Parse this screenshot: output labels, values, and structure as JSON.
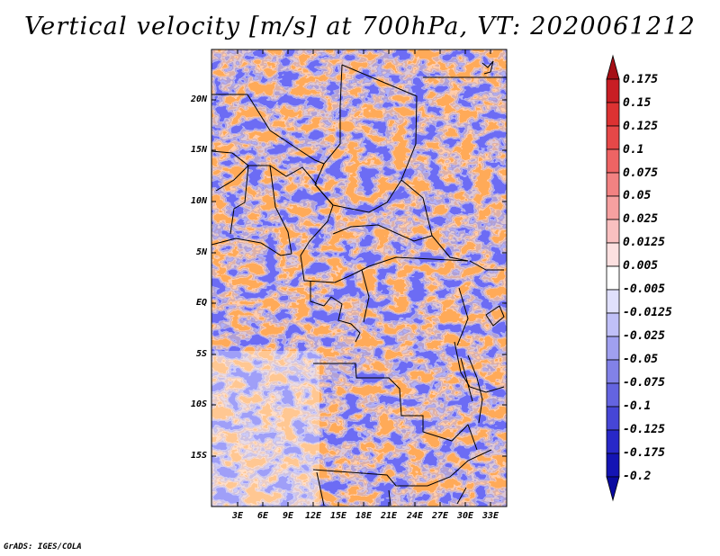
{
  "title": "Vertical velocity [m/s] at 700hPa, VT: 2020061212",
  "footer": "GrADS: IGES/COLA",
  "map": {
    "type": "filled-contour",
    "projection": "latlon",
    "lat_ticks": [
      "20N",
      "15N",
      "10N",
      "5N",
      "EQ",
      "5S",
      "10S",
      "15S"
    ],
    "lon_ticks": [
      "3E",
      "6E",
      "9E",
      "12E",
      "15E",
      "18E",
      "21E",
      "24E",
      "27E",
      "30E",
      "33E"
    ]
  },
  "colorbar": {
    "labels": [
      "0.175",
      "0.15",
      "0.125",
      "0.1",
      "0.075",
      "0.05",
      "0.025",
      "0.0125",
      "0.005",
      "-0.005",
      "-0.0125",
      "-0.025",
      "-0.05",
      "-0.075",
      "-0.1",
      "-0.125",
      "-0.175",
      "-0.2"
    ],
    "colors": [
      "#a50f15",
      "#c81e24",
      "#dc3232",
      "#e64848",
      "#ee6464",
      "#f28282",
      "#f6a0a0",
      "#f9c0c0",
      "#fce0e0",
      "#ffffff",
      "#e0e0fc",
      "#c0c0f8",
      "#a0a0f0",
      "#8282e8",
      "#6464e0",
      "#4646d6",
      "#2828c8",
      "#1414b4",
      "#0a0aa0"
    ]
  }
}
